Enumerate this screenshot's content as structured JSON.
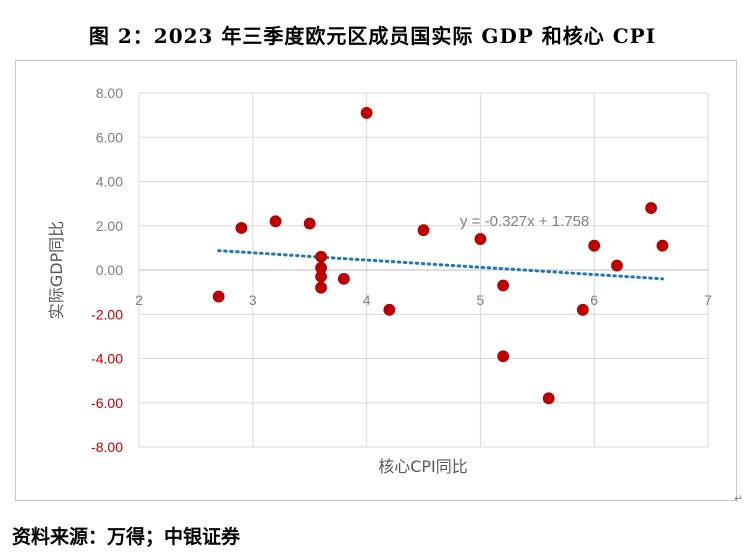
{
  "figure_title": "图 2：2023 年三季度欧元区成员国实际 GDP 和核心 CPI",
  "source_note": "资料来源：万得；中银证券",
  "chart_data": {
    "type": "scatter",
    "xlabel": "核心CPI同比",
    "ylabel": "实际GDP同比",
    "xlim": [
      2,
      7
    ],
    "ylim": [
      -8,
      8
    ],
    "x_ticks": [
      "2",
      "3",
      "4",
      "5",
      "6",
      "7"
    ],
    "y_ticks": [
      "8.00",
      "6.00",
      "4.00",
      "2.00",
      "0.00",
      "-2.00",
      "-4.00",
      "-6.00",
      "-8.00"
    ],
    "grid": true,
    "points": [
      {
        "x": 2.7,
        "y": -1.2
      },
      {
        "x": 2.9,
        "y": 1.9
      },
      {
        "x": 3.2,
        "y": 2.2
      },
      {
        "x": 3.5,
        "y": 2.1
      },
      {
        "x": 3.6,
        "y": 0.6
      },
      {
        "x": 3.6,
        "y": 0.1
      },
      {
        "x": 3.6,
        "y": -0.3
      },
      {
        "x": 3.6,
        "y": -0.8
      },
      {
        "x": 3.8,
        "y": -0.4
      },
      {
        "x": 4.0,
        "y": 7.1
      },
      {
        "x": 4.2,
        "y": -1.8
      },
      {
        "x": 4.5,
        "y": 1.8
      },
      {
        "x": 5.0,
        "y": 1.4
      },
      {
        "x": 5.2,
        "y": -0.7
      },
      {
        "x": 5.2,
        "y": -3.9
      },
      {
        "x": 5.6,
        "y": -5.8
      },
      {
        "x": 5.9,
        "y": -1.8
      },
      {
        "x": 6.0,
        "y": 1.1
      },
      {
        "x": 6.2,
        "y": 0.2
      },
      {
        "x": 6.5,
        "y": 2.8
      },
      {
        "x": 6.6,
        "y": 1.1
      }
    ],
    "trendline": {
      "slope": -0.327,
      "intercept": 1.758,
      "x_range": [
        2.7,
        6.6
      ],
      "equation": "y = -0.327x + 1.758"
    },
    "colors": {
      "points": "#c00000",
      "trendline": "#1f77b4",
      "y_tick_negative": "#c00000",
      "tick": "#7f7f7f",
      "grid": "#d9d9d9"
    }
  }
}
